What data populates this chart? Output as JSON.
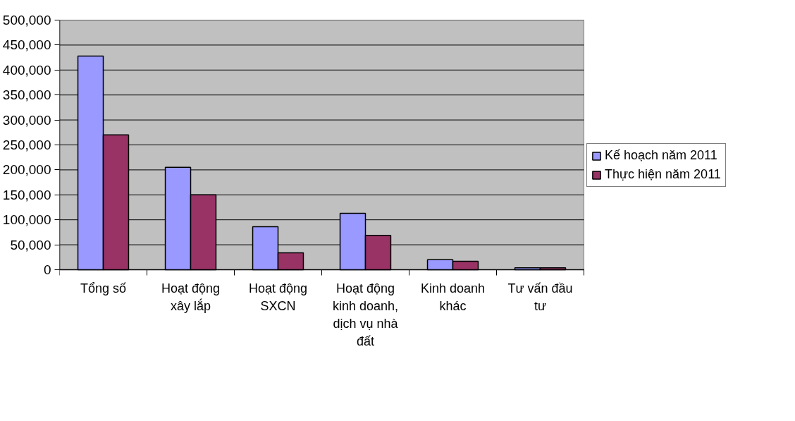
{
  "chart_data": {
    "type": "bar",
    "categories": [
      "Tổng số",
      "Hoạt động xây lắp",
      "Hoạt động SXCN",
      "Hoạt động kinh doanh, dịch vụ nhà đất",
      "Kinh doanh khác",
      "Tư vấn đầu tư"
    ],
    "series": [
      {
        "name": "Kế hoạch năm 2011",
        "color": "#9999ff",
        "values": [
          428000,
          205000,
          86000,
          113000,
          20000,
          4000
        ]
      },
      {
        "name": "Thực hiện năm 2011",
        "color": "#993366",
        "values": [
          270000,
          150000,
          34000,
          69000,
          17000,
          4000
        ]
      }
    ],
    "ylim": [
      0,
      500000
    ],
    "yticks": [
      {
        "value": 0,
        "label": "0"
      },
      {
        "value": 50000,
        "label": "50,000"
      },
      {
        "value": 100000,
        "label": "100,000"
      },
      {
        "value": 150000,
        "label": "150,000"
      },
      {
        "value": 200000,
        "label": "200,000"
      },
      {
        "value": 250000,
        "label": "250,000"
      },
      {
        "value": 300000,
        "label": "300,000"
      },
      {
        "value": 350000,
        "label": "350,000"
      },
      {
        "value": 400000,
        "label": "400,000"
      },
      {
        "value": 450000,
        "label": "450,000"
      },
      {
        "value": 500000,
        "label": "500,000"
      }
    ],
    "grid": "y",
    "legend": "right"
  }
}
